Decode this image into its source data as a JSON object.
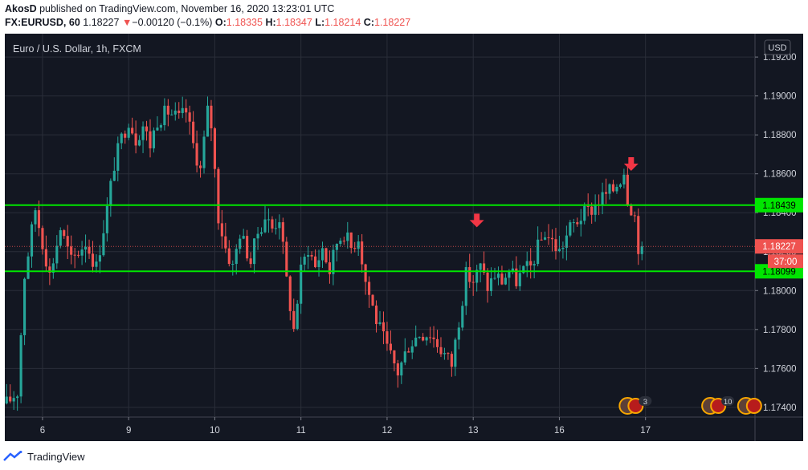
{
  "header": {
    "publisher": "AkosD",
    "published_text": "published on TradingView.com, November 16, 2020 13:23:01 UTC",
    "symbol": "FX:EURUSD, 60",
    "last": "1.18227",
    "change_arrow": "▼",
    "change": "−0.00120 (−0.1%)",
    "open_label": "O:",
    "open": "1.18335",
    "high_label": "H:",
    "high": "1.18347",
    "low_label": "L:",
    "low": "1.18214",
    "close_label": "C:",
    "close": "1.18227"
  },
  "footer": {
    "brand": "TradingView"
  },
  "chart_data": {
    "type": "candlestick",
    "title": "Euro / U.S. Dollar, 1h, FXCM",
    "currency": "USD",
    "ylim": [
      1.1735,
      1.1932
    ],
    "y_ticks": [
      "1.19200",
      "1.19000",
      "1.18800",
      "1.18600",
      "1.18400",
      "1.18200",
      "1.18000",
      "1.17800",
      "1.17600",
      "1.17400"
    ],
    "y_tick_values": [
      1.192,
      1.19,
      1.188,
      1.186,
      1.184,
      1.182,
      1.18,
      1.178,
      1.176,
      1.174
    ],
    "x_ticks": [
      "6",
      "9",
      "10",
      "11",
      "12",
      "13",
      "16",
      "17"
    ],
    "x_tick_positions": [
      10,
      34,
      58,
      82,
      106,
      130,
      154,
      178
    ],
    "n_bars": 209,
    "grid": true,
    "horizontal_levels": [
      {
        "value": 1.18439,
        "label": "1.18439",
        "color": "#00e600"
      },
      {
        "value": 1.18099,
        "label": "1.18099",
        "color": "#00e600"
      }
    ],
    "last_price": {
      "value": 1.18227,
      "label": "1.18227",
      "countdown": "37:00",
      "color": "#ef5350"
    },
    "annotations": [
      {
        "type": "arrow-down",
        "bar": 131,
        "price": 1.1835,
        "color": "#f23645"
      },
      {
        "type": "arrow-down",
        "bar": 174,
        "price": 1.1864,
        "color": "#f23645"
      }
    ],
    "event_badges": [
      {
        "bar": 173,
        "count": "3"
      },
      {
        "bar": 196,
        "count": "10"
      },
      {
        "bar": 206,
        "count": ""
      }
    ],
    "colors": {
      "up": "#26a69a",
      "down": "#ef5350",
      "background": "#131722",
      "grid": "#2a2e39"
    },
    "anchors": [
      [
        0,
        1.1742
      ],
      [
        3,
        1.1748
      ],
      [
        5,
        1.1808
      ],
      [
        8,
        1.1842
      ],
      [
        10,
        1.1825
      ],
      [
        12,
        1.1808
      ],
      [
        15,
        1.1832
      ],
      [
        18,
        1.1815
      ],
      [
        22,
        1.1825
      ],
      [
        25,
        1.1812
      ],
      [
        28,
        1.1842
      ],
      [
        30,
        1.1865
      ],
      [
        32,
        1.1878
      ],
      [
        34,
        1.1888
      ],
      [
        36,
        1.1878
      ],
      [
        38,
        1.1885
      ],
      [
        40,
        1.1875
      ],
      [
        42,
        1.1888
      ],
      [
        45,
        1.1892
      ],
      [
        48,
        1.1888
      ],
      [
        50,
        1.1892
      ],
      [
        52,
        1.1875
      ],
      [
        54,
        1.1862
      ],
      [
        56,
        1.1892
      ],
      [
        57,
        1.1885
      ],
      [
        59,
        1.1838
      ],
      [
        61,
        1.1822
      ],
      [
        63,
        1.1812
      ],
      [
        65,
        1.183
      ],
      [
        68,
        1.1815
      ],
      [
        70,
        1.183
      ],
      [
        72,
        1.1838
      ],
      [
        74,
        1.1832
      ],
      [
        76,
        1.1838
      ],
      [
        78,
        1.1805
      ],
      [
        80,
        1.178
      ],
      [
        82,
        1.181
      ],
      [
        84,
        1.1822
      ],
      [
        86,
        1.1812
      ],
      [
        88,
        1.1822
      ],
      [
        90,
        1.181
      ],
      [
        92,
        1.1825
      ],
      [
        94,
        1.183
      ],
      [
        96,
        1.1822
      ],
      [
        98,
        1.1828
      ],
      [
        100,
        1.1805
      ],
      [
        103,
        1.1785
      ],
      [
        106,
        1.177
      ],
      [
        109,
        1.1758
      ],
      [
        112,
        1.1772
      ],
      [
        115,
        1.1778
      ],
      [
        118,
        1.1778
      ],
      [
        121,
        1.177
      ],
      [
        124,
        1.1762
      ],
      [
        126,
        1.1785
      ],
      [
        128,
        1.1808
      ],
      [
        130,
        1.1805
      ],
      [
        132,
        1.1812
      ],
      [
        134,
        1.1802
      ],
      [
        136,
        1.1808
      ],
      [
        138,
        1.1805
      ],
      [
        140,
        1.181
      ],
      [
        142,
        1.1805
      ],
      [
        144,
        1.181
      ],
      [
        146,
        1.1812
      ],
      [
        148,
        1.1822
      ],
      [
        150,
        1.183
      ],
      [
        152,
        1.1825
      ],
      [
        154,
        1.182
      ],
      [
        157,
        1.1832
      ],
      [
        160,
        1.1838
      ],
      [
        163,
        1.1842
      ],
      [
        166,
        1.1848
      ],
      [
        169,
        1.1852
      ],
      [
        171,
        1.1858
      ],
      [
        172,
        1.1862
      ],
      [
        173,
        1.1848
      ],
      [
        175,
        1.1838
      ],
      [
        176,
        1.1823
      ],
      [
        177,
        1.18227
      ]
    ]
  }
}
